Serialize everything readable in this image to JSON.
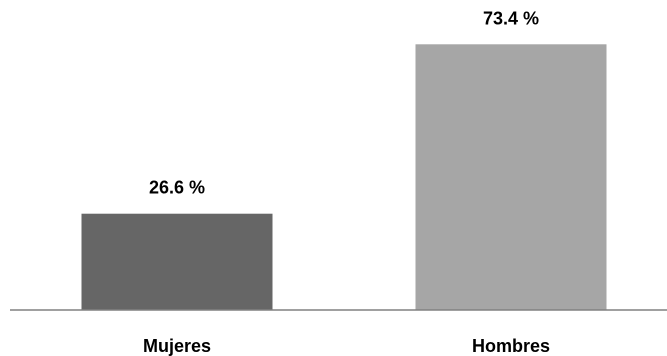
{
  "chart_data": {
    "type": "bar",
    "categories": [
      "Mujeres",
      "Hombres"
    ],
    "values": [
      26.6,
      73.4
    ],
    "data_labels": [
      "26.6 %",
      "73.4 %"
    ],
    "bar_colors": [
      "#666666",
      "#a6a6a6"
    ],
    "axis_color": "#808080",
    "ylim": [
      0,
      80
    ],
    "title": "",
    "xlabel": "",
    "ylabel": "",
    "grid": false,
    "legend": "none"
  }
}
